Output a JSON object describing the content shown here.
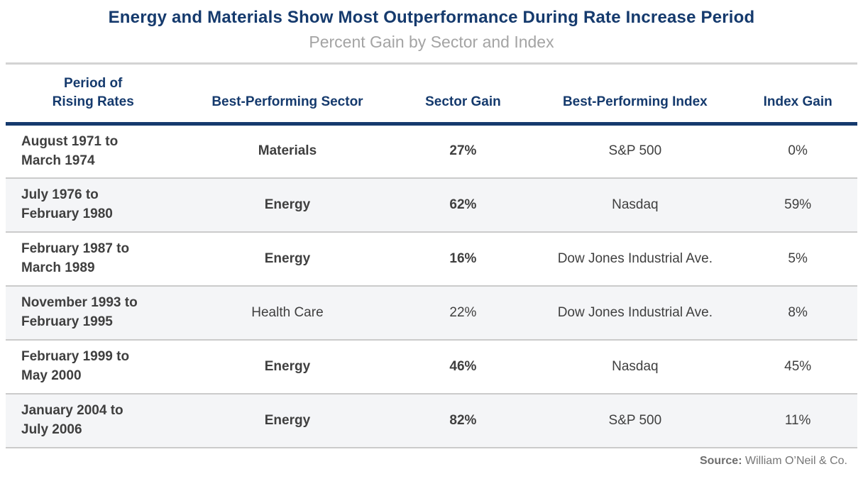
{
  "title": "Energy and Materials Show Most Outperformance During Rate Increase Period",
  "subtitle": "Percent Gain by Sector and Index",
  "colors": {
    "navy": "#153a6d",
    "body_text": "#3f3f3f",
    "alt_row_background": "#f4f5f7",
    "row_separator": "#cbcbcb",
    "subtitle_gray": "#a4a4a4",
    "source_gray": "#767676"
  },
  "table": {
    "headers": {
      "period1": "Period of",
      "period2": "Rising Rates",
      "sector": "Best-Performing Sector",
      "sector_gain": "Sector Gain",
      "index": "Best-Performing Index",
      "index_gain": "Index Gain"
    },
    "rows": [
      {
        "period1": "August 1971 to",
        "period2": "March 1974",
        "sector": "Materials",
        "sector_gain": "27%",
        "index": "S&P 500",
        "index_gain": "0%",
        "emphasized": true
      },
      {
        "period1": "July 1976 to",
        "period2": "February 1980",
        "sector": "Energy",
        "sector_gain": "62%",
        "index": "Nasdaq",
        "index_gain": "59%",
        "emphasized": true
      },
      {
        "period1": "February 1987 to",
        "period2": "March 1989",
        "sector": "Energy",
        "sector_gain": "16%",
        "index": "Dow Jones Industrial Ave.",
        "index_gain": "5%",
        "emphasized": true
      },
      {
        "period1": "November 1993 to",
        "period2": "February 1995",
        "sector": "Health Care",
        "sector_gain": "22%",
        "index": "Dow Jones Industrial Ave.",
        "index_gain": "8%",
        "emphasized": false
      },
      {
        "period1": "February 1999 to",
        "period2": "May 2000",
        "sector": "Energy",
        "sector_gain": "46%",
        "index": "Nasdaq",
        "index_gain": "45%",
        "emphasized": true
      },
      {
        "period1": "January 2004 to",
        "period2": "July 2006",
        "sector": "Energy",
        "sector_gain": "82%",
        "index": "S&P 500",
        "index_gain": "11%",
        "emphasized": true
      }
    ]
  },
  "source": {
    "label": "Source:",
    "text": " William O’Neil & Co."
  },
  "chart_data": {
    "type": "table",
    "title": "Energy and Materials Show Most Outperformance During Rate Increase Period",
    "subtitle": "Percent Gain by Sector and Index",
    "columns": [
      "Period of Rising Rates",
      "Best-Performing Sector",
      "Sector Gain",
      "Best-Performing Index",
      "Index Gain"
    ],
    "rows": [
      [
        "August 1971 to March 1974",
        "Materials",
        "27%",
        "S&P 500",
        "0%"
      ],
      [
        "July 1976 to February 1980",
        "Energy",
        "62%",
        "Nasdaq",
        "59%"
      ],
      [
        "February 1987 to March 1989",
        "Energy",
        "16%",
        "Dow Jones Industrial Ave.",
        "5%"
      ],
      [
        "November 1993 to February 1995",
        "Health Care",
        "22%",
        "Dow Jones Industrial Ave.",
        "8%"
      ],
      [
        "February 1999 to May 2000",
        "Energy",
        "46%",
        "Nasdaq",
        "45%"
      ],
      [
        "January 2004 to July 2006",
        "Energy",
        "82%",
        "S&P 500",
        "11%"
      ]
    ],
    "sector_gain_values": [
      27,
      62,
      16,
      22,
      46,
      82
    ],
    "index_gain_values": [
      0,
      59,
      5,
      8,
      45,
      11
    ],
    "source": "William O'Neil & Co."
  }
}
